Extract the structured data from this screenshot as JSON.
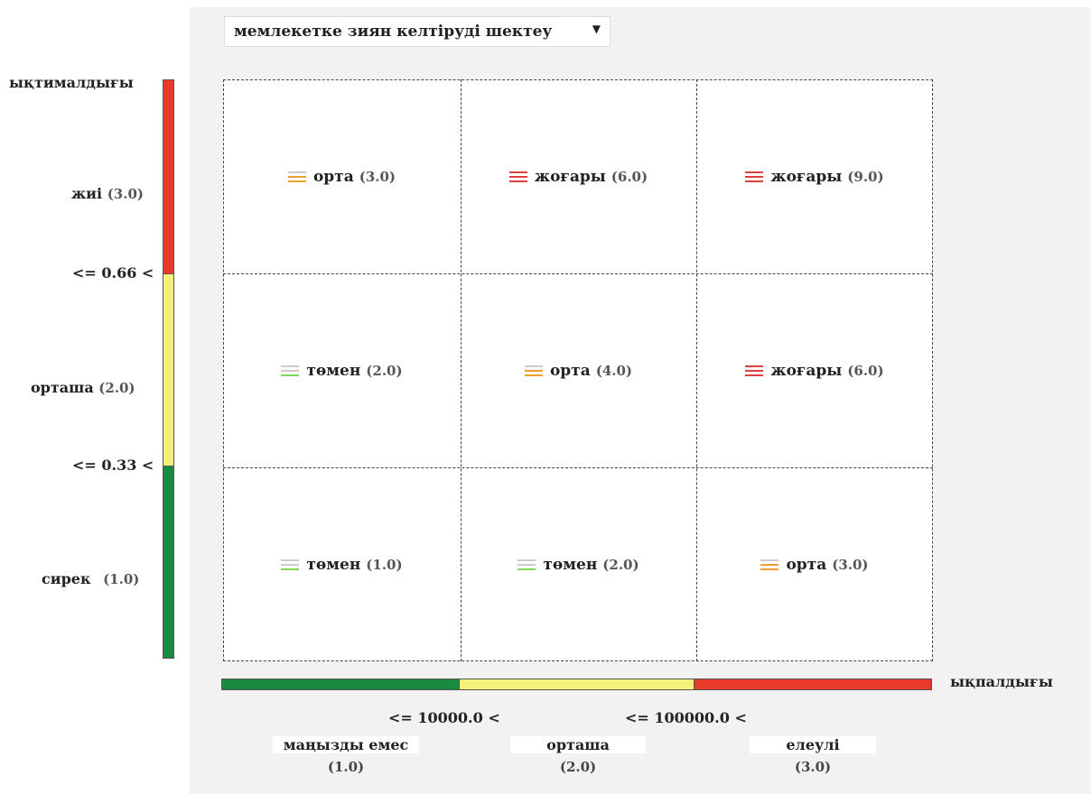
{
  "dropdown": {
    "selected": "мемлекетке зиян келтіруді шектеу"
  },
  "y_axis": {
    "title": "ықтималдығы",
    "levels": [
      {
        "name": "жиі",
        "value": "(3.0)",
        "color": "#e8392a"
      },
      {
        "name": "орташа",
        "value": "(2.0)",
        "color": "#f3f17a"
      },
      {
        "name": "сирек",
        "value": "(1.0)",
        "color": "#1a8a40"
      }
    ],
    "thresholds": [
      "<= 0.66 <",
      "<= 0.33 <"
    ]
  },
  "x_axis": {
    "title": "ықпалдығы",
    "levels": [
      {
        "name": "маңызды емес",
        "value": "(1.0)",
        "color": "#1a8a40"
      },
      {
        "name": "орташа",
        "value": "(2.0)",
        "color": "#f3f17a"
      },
      {
        "name": "елеулі",
        "value": "(3.0)",
        "color": "#e8392a"
      }
    ],
    "thresholds": [
      "<= 10000.0 <",
      "<= 100000.0 <"
    ]
  },
  "matrix": {
    "rows": [
      [
        {
          "label": "орта",
          "value": "(3.0)",
          "level": "medium"
        },
        {
          "label": "жоғары",
          "value": "(6.0)",
          "level": "high"
        },
        {
          "label": "жоғары",
          "value": "(9.0)",
          "level": "high"
        }
      ],
      [
        {
          "label": "төмен",
          "value": "(2.0)",
          "level": "low"
        },
        {
          "label": "орта",
          "value": "(4.0)",
          "level": "medium"
        },
        {
          "label": "жоғары",
          "value": "(6.0)",
          "level": "high"
        }
      ],
      [
        {
          "label": "төмен",
          "value": "(1.0)",
          "level": "low"
        },
        {
          "label": "төмен",
          "value": "(2.0)",
          "level": "low"
        },
        {
          "label": "орта",
          "value": "(3.0)",
          "level": "medium"
        }
      ]
    ]
  },
  "level_colors": {
    "low": [
      "#cccccc",
      "#cccccc",
      "#7ed957"
    ],
    "medium": [
      "#cccccc",
      "#f0a030",
      "#f0a030"
    ],
    "high": [
      "#e04040",
      "#e04040",
      "#e04040"
    ]
  }
}
